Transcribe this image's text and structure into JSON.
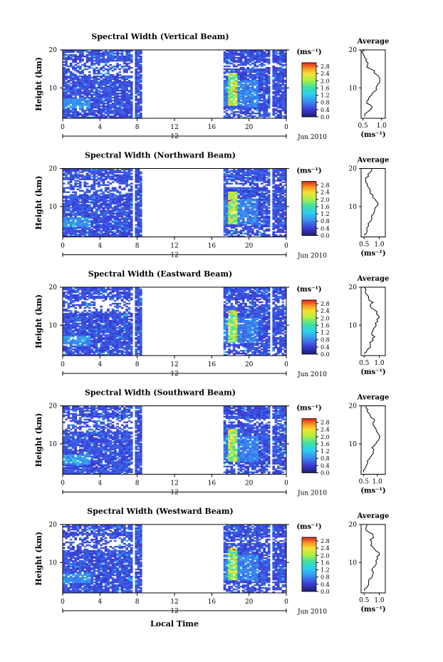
{
  "chart_data": [
    {
      "type": "heatmap",
      "title": "Spectral Width (Vertical Beam)",
      "ylabel": "Height (km)",
      "y_ticks": [
        "20",
        "10"
      ],
      "x_ticks": [
        "0",
        "4",
        "8",
        "12",
        "16",
        "20",
        "0"
      ],
      "x_range": [
        0,
        24
      ],
      "y_range": [
        2,
        20
      ],
      "date_label": "12",
      "month_label": "Jun 2010",
      "colorbar": {
        "unit": "(ms⁻¹)",
        "ticks": [
          "2.8",
          "2.4",
          "2.0",
          "1.6",
          "1.2",
          "0.8",
          "0.4",
          "0.0"
        ],
        "range": [
          0,
          3
        ]
      },
      "data_gaps": [
        [
          7.5,
          7.7
        ],
        [
          8.5,
          17.2
        ]
      ],
      "average": {
        "title": "Average",
        "xlabel": "(ms⁻¹)",
        "x_ticks": [
          "0.5",
          "1.0"
        ],
        "xlim": [
          0.45,
          1.1
        ],
        "y_ticks": [
          "20",
          "10"
        ],
        "profile": [
          [
            0.55,
            2.5
          ],
          [
            0.6,
            3.5
          ],
          [
            0.75,
            5
          ],
          [
            0.6,
            6
          ],
          [
            0.65,
            7
          ],
          [
            0.72,
            8
          ],
          [
            0.8,
            9
          ],
          [
            0.85,
            10
          ],
          [
            0.9,
            11
          ],
          [
            0.95,
            12
          ],
          [
            0.92,
            13
          ],
          [
            0.8,
            14
          ],
          [
            0.7,
            15
          ],
          [
            0.62,
            16
          ],
          [
            0.58,
            17
          ],
          [
            0.55,
            18
          ],
          [
            0.5,
            19
          ],
          [
            0.55,
            20
          ]
        ]
      }
    },
    {
      "type": "heatmap",
      "title": "Spectral Width (Northward Beam)",
      "ylabel": "Height (km)",
      "y_ticks": [
        "20",
        "10"
      ],
      "x_ticks": [
        "0",
        "4",
        "8",
        "12",
        "16",
        "20",
        "0"
      ],
      "x_range": [
        0,
        24
      ],
      "y_range": [
        2,
        20
      ],
      "date_label": "12",
      "month_label": "Jun 2010",
      "colorbar": {
        "unit": "(ms⁻¹)",
        "ticks": [
          "2.8",
          "2.4",
          "2.0",
          "1.6",
          "1.2",
          "0.8",
          "0.4",
          "0.0"
        ],
        "range": [
          0,
          3
        ]
      },
      "data_gaps": [
        [
          7.5,
          7.7
        ],
        [
          8.5,
          17.2
        ]
      ],
      "average": {
        "title": "Average",
        "xlabel": "(ms⁻¹)",
        "x_ticks": [
          "0.5",
          "1.0"
        ],
        "xlim": [
          0.4,
          1.2
        ],
        "y_ticks": [
          "20",
          "10"
        ],
        "profile": [
          [
            0.5,
            2.5
          ],
          [
            0.6,
            3.5
          ],
          [
            0.65,
            5
          ],
          [
            0.7,
            6
          ],
          [
            0.75,
            7
          ],
          [
            0.8,
            8
          ],
          [
            0.85,
            9
          ],
          [
            0.9,
            10
          ],
          [
            0.95,
            11
          ],
          [
            0.85,
            12
          ],
          [
            0.8,
            13
          ],
          [
            0.7,
            14
          ],
          [
            0.65,
            15
          ],
          [
            0.6,
            16
          ],
          [
            0.55,
            17
          ],
          [
            0.65,
            18
          ],
          [
            0.7,
            19
          ],
          [
            0.75,
            20
          ]
        ]
      }
    },
    {
      "type": "heatmap",
      "title": "Spectral Width (Eastward Beam)",
      "ylabel": "Height (km)",
      "y_ticks": [
        "20",
        "10"
      ],
      "x_ticks": [
        "0",
        "4",
        "8",
        "12",
        "16",
        "20",
        "0"
      ],
      "x_range": [
        0,
        24
      ],
      "y_range": [
        2,
        20
      ],
      "date_label": "12",
      "month_label": "Jun 2010",
      "colorbar": {
        "unit": "(ms⁻¹)",
        "ticks": [
          "2.8",
          "2.4",
          "2.0",
          "1.6",
          "1.2",
          "0.8",
          "0.4",
          "0.0"
        ],
        "range": [
          0,
          3
        ]
      },
      "data_gaps": [
        [
          7.5,
          7.7
        ],
        [
          8.5,
          17.2
        ]
      ],
      "average": {
        "title": "Average",
        "xlabel": "(ms⁻¹)",
        "x_ticks": [
          "0.5",
          "1.0"
        ],
        "xlim": [
          0.4,
          1.2
        ],
        "y_ticks": [
          "20",
          "10"
        ],
        "profile": [
          [
            0.5,
            2.5
          ],
          [
            0.6,
            3.5
          ],
          [
            0.7,
            5
          ],
          [
            0.8,
            6
          ],
          [
            0.85,
            7
          ],
          [
            0.75,
            8
          ],
          [
            0.8,
            9
          ],
          [
            0.9,
            10
          ],
          [
            0.95,
            11
          ],
          [
            1.0,
            12
          ],
          [
            0.9,
            13
          ],
          [
            0.85,
            14
          ],
          [
            0.7,
            15
          ],
          [
            0.8,
            16
          ],
          [
            0.65,
            17
          ],
          [
            0.6,
            18
          ],
          [
            0.55,
            19
          ],
          [
            0.5,
            20
          ]
        ]
      }
    },
    {
      "type": "heatmap",
      "title": "Spectral Width (Southward Beam)",
      "ylabel": "Height (km)",
      "y_ticks": [
        "20",
        "10"
      ],
      "x_ticks": [
        "0",
        "4",
        "8",
        "12",
        "16",
        "20",
        "0"
      ],
      "x_range": [
        0,
        24
      ],
      "y_range": [
        2,
        20
      ],
      "date_label": "12",
      "month_label": "Jun 2010",
      "colorbar": {
        "unit": "(ms⁻¹)",
        "ticks": [
          "2.8",
          "2.4",
          "2.0",
          "1.6",
          "1.2",
          "0.8",
          "0.4",
          "0.0"
        ],
        "range": [
          0,
          3
        ]
      },
      "data_gaps": [
        [
          7.5,
          7.7
        ],
        [
          8.5,
          17.2
        ]
      ],
      "average": {
        "title": "Average",
        "xlabel": "(ms⁻¹)",
        "x_ticks": [
          "0.5",
          "1.0"
        ],
        "xlim": [
          0.4,
          1.3
        ],
        "y_ticks": [
          "20",
          "10"
        ],
        "profile": [
          [
            0.5,
            2.5
          ],
          [
            0.55,
            3.5
          ],
          [
            0.65,
            5
          ],
          [
            0.7,
            6
          ],
          [
            0.8,
            7
          ],
          [
            0.85,
            8
          ],
          [
            0.8,
            9
          ],
          [
            0.95,
            10
          ],
          [
            1.05,
            11
          ],
          [
            1.1,
            12
          ],
          [
            1.0,
            13
          ],
          [
            0.95,
            14
          ],
          [
            0.85,
            15
          ],
          [
            0.9,
            16
          ],
          [
            0.75,
            17
          ],
          [
            0.7,
            18
          ],
          [
            0.65,
            19
          ],
          [
            0.6,
            20
          ]
        ]
      }
    },
    {
      "type": "heatmap",
      "title": "Spectral Width (Westward Beam)",
      "ylabel": "Height (km)",
      "y_ticks": [
        "20",
        "10"
      ],
      "x_ticks": [
        "0",
        "4",
        "8",
        "12",
        "16",
        "20",
        "0"
      ],
      "x_range": [
        0,
        24
      ],
      "y_range": [
        2,
        20
      ],
      "date_label": "12",
      "month_label": "Jun 2010",
      "colorbar": {
        "unit": "(ms⁻¹)",
        "ticks": [
          "2.8",
          "2.4",
          "2.0",
          "1.6",
          "1.2",
          "0.8",
          "0.4",
          "0.0"
        ],
        "range": [
          0,
          3
        ]
      },
      "data_gaps": [
        [
          7.5,
          7.7
        ],
        [
          8.5,
          17.2
        ]
      ],
      "average": {
        "title": "Average",
        "xlabel": "(ms⁻¹)",
        "x_ticks": [
          "0.5",
          "1.0"
        ],
        "xlim": [
          0.4,
          1.2
        ],
        "y_ticks": [
          "20",
          "10"
        ],
        "profile": [
          [
            0.5,
            2.5
          ],
          [
            0.6,
            3.5
          ],
          [
            0.65,
            5
          ],
          [
            0.75,
            6
          ],
          [
            0.8,
            7
          ],
          [
            0.75,
            8
          ],
          [
            0.85,
            9
          ],
          [
            0.9,
            10
          ],
          [
            0.95,
            11
          ],
          [
            1.0,
            12
          ],
          [
            0.9,
            13
          ],
          [
            0.8,
            14
          ],
          [
            0.75,
            15
          ],
          [
            0.7,
            16
          ],
          [
            0.8,
            17
          ],
          [
            0.65,
            18
          ],
          [
            0.55,
            19
          ],
          [
            0.6,
            20
          ]
        ]
      }
    }
  ],
  "xaxis_label": "Local Time"
}
